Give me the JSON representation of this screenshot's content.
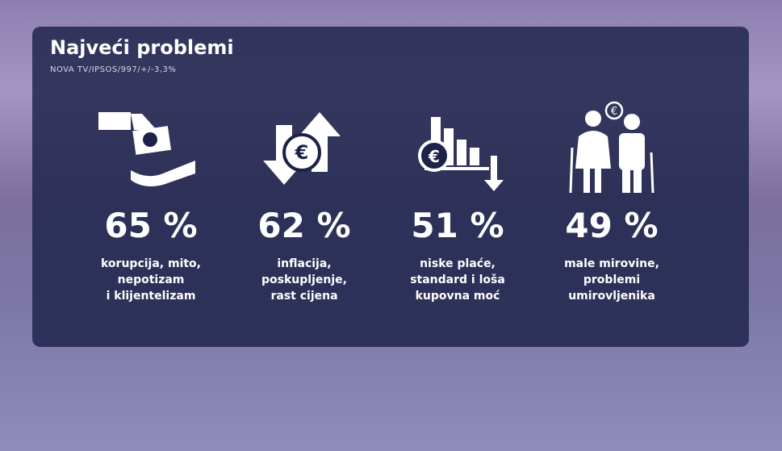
{
  "title": "Najveći problemi",
  "source": "NOVA TV/IPSOS/997/+/-3,3%",
  "items": [
    {
      "value": "65 %",
      "lines": [
        "korupcija, mito,",
        "nepotizam",
        "i klijentelizam"
      ]
    },
    {
      "value": "62 %",
      "lines": [
        "inflacija,",
        "poskupljenje,",
        "rast cijena"
      ]
    },
    {
      "value": "51 %",
      "lines": [
        "niske plaće,",
        "standard i loša",
        "kupovna moć"
      ]
    },
    {
      "value": "49 %",
      "lines": [
        "male mirovine,",
        "problemi",
        "umirovljenika"
      ]
    }
  ]
}
